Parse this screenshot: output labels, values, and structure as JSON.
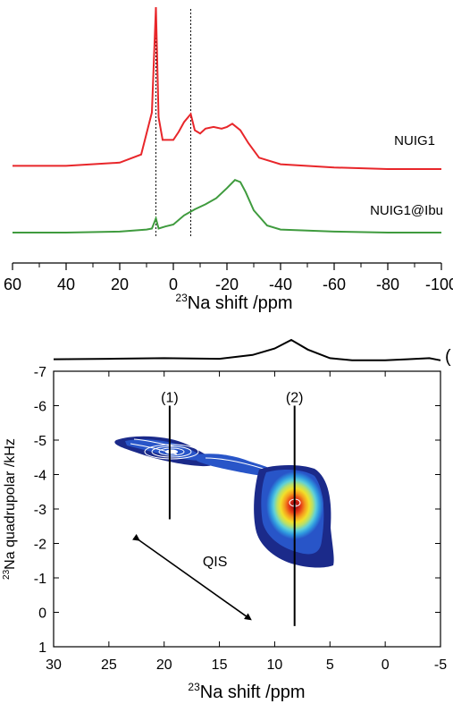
{
  "chart_data": [
    {
      "type": "line",
      "xlabel_sup": "23",
      "xlabel": "Na shift /ppm",
      "xlim": [
        60,
        -100
      ],
      "xticks": [
        "60",
        "40",
        "20",
        "0",
        "-20",
        "-40",
        "-60",
        "-80",
        "-100"
      ],
      "reference_lines_ppm": [
        6.5,
        -6.5
      ],
      "series": [
        {
          "name": "NUIG1",
          "color": "#e8262a",
          "x": [
            60,
            40,
            20,
            12,
            8,
            6.5,
            5.5,
            4,
            0,
            -2,
            -4,
            -6.5,
            -8,
            -10,
            -12,
            -15,
            -18,
            -20,
            -22,
            -25,
            -28,
            -32,
            -40,
            -60,
            -80,
            -100
          ],
          "y": [
            0.02,
            0.02,
            0.04,
            0.09,
            0.35,
            1.0,
            0.32,
            0.18,
            0.18,
            0.23,
            0.29,
            0.34,
            0.24,
            0.22,
            0.25,
            0.26,
            0.25,
            0.26,
            0.28,
            0.24,
            0.16,
            0.07,
            0.03,
            0.01,
            0.0,
            0.0
          ]
        },
        {
          "name": "NUIG1@Ibu",
          "color": "#3f9b3e",
          "x": [
            60,
            40,
            20,
            10,
            8,
            6.5,
            5.5,
            3,
            0,
            -4,
            -8,
            -12,
            -16,
            -20,
            -23,
            -25,
            -27,
            -30,
            -35,
            -40,
            -60,
            -80,
            -100
          ],
          "y": [
            0.0,
            0.0,
            0.01,
            0.03,
            0.04,
            0.14,
            0.04,
            0.06,
            0.08,
            0.17,
            0.23,
            0.28,
            0.34,
            0.44,
            0.52,
            0.5,
            0.4,
            0.22,
            0.07,
            0.03,
            0.01,
            0.0,
            0.0
          ]
        }
      ]
    },
    {
      "type": "contour",
      "xlabel_sup": "23",
      "xlabel": "Na shift /ppm",
      "ylabel_sup": "23",
      "ylabel": "Na quadrupolar /kHz",
      "xlim": [
        30,
        -5
      ],
      "ylim": [
        1,
        -7
      ],
      "xticks": [
        "30",
        "25",
        "20",
        "15",
        "10",
        "5",
        "0",
        "-5"
      ],
      "yticks": [
        "-7",
        "-6",
        "-5",
        "-4",
        "-3",
        "-2",
        "-1",
        "0",
        "1"
      ],
      "site_labels": [
        {
          "text": "(1)",
          "x": 19.5,
          "y": -6.1
        },
        {
          "text": "(2)",
          "x": 8.2,
          "y": -6.1
        }
      ],
      "site_lines": [
        {
          "x": 19.5,
          "y0": -6.0,
          "y1": -2.7
        },
        {
          "x": 8.2,
          "y0": -6.0,
          "y1": 0.4
        }
      ],
      "annotation": {
        "text": "QIS",
        "x": 15.4,
        "y": -1.5
      },
      "qis_arrow": {
        "x0": 22.3,
        "y0": -2.1,
        "x1": 12.2,
        "y1": 0.2
      },
      "projection": {
        "x": [
          30,
          25,
          20,
          15,
          12,
          10,
          8.5,
          7,
          5,
          3,
          0,
          -2,
          -4,
          -5
        ],
        "y": [
          0.1,
          0.12,
          0.15,
          0.12,
          0.3,
          0.6,
          1.0,
          0.55,
          0.15,
          0.05,
          0.05,
          0.1,
          0.15,
          0.05
        ]
      },
      "peaks": [
        {
          "site": "(1)",
          "x": 19.5,
          "y": -4.6
        },
        {
          "site": "(2)",
          "x": 8.2,
          "y": -3.2
        }
      ],
      "colors": [
        "#1b2a8a",
        "#2855c8",
        "#2f9ae0",
        "#5fd0d8",
        "#b8e06a",
        "#f2e02a",
        "#f59a1e",
        "#e63d18",
        "#b01010",
        "#ffffff"
      ]
    }
  ],
  "partial_label": "("
}
